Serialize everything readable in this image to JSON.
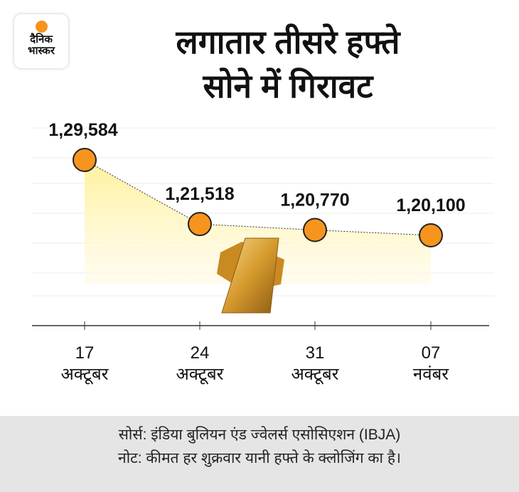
{
  "logo": {
    "line1": "दैनिक",
    "line2": "भास्कर"
  },
  "title": {
    "line1": "लगातार तीसरे हफ्ते",
    "line2": "सोने में गिरावट"
  },
  "chart_data": {
    "type": "line",
    "title": "लगातार तीसरे हफ्ते सोने में गिरावट",
    "categories": [
      [
        "17",
        "अक्टूबर"
      ],
      [
        "24",
        "अक्टूबर"
      ],
      [
        "31",
        "अक्टूबर"
      ],
      [
        "07",
        "नवंबर"
      ]
    ],
    "values": [
      129584,
      121518,
      120770,
      120100
    ],
    "labels": [
      "1,29,584",
      "1,21,518",
      "1,20,770",
      "1,20,100"
    ],
    "colors": {
      "point": "#f7941d",
      "fill": "#fff3a8"
    }
  },
  "footer": {
    "source": "सोर्स: इंडिया बुलियन एंड ज्वेलर्स एसोसिएशन (IBJA)",
    "note": "नोट: कीमत हर शुक्रवार यानी हफ्ते के क्लोजिंग का है।"
  }
}
